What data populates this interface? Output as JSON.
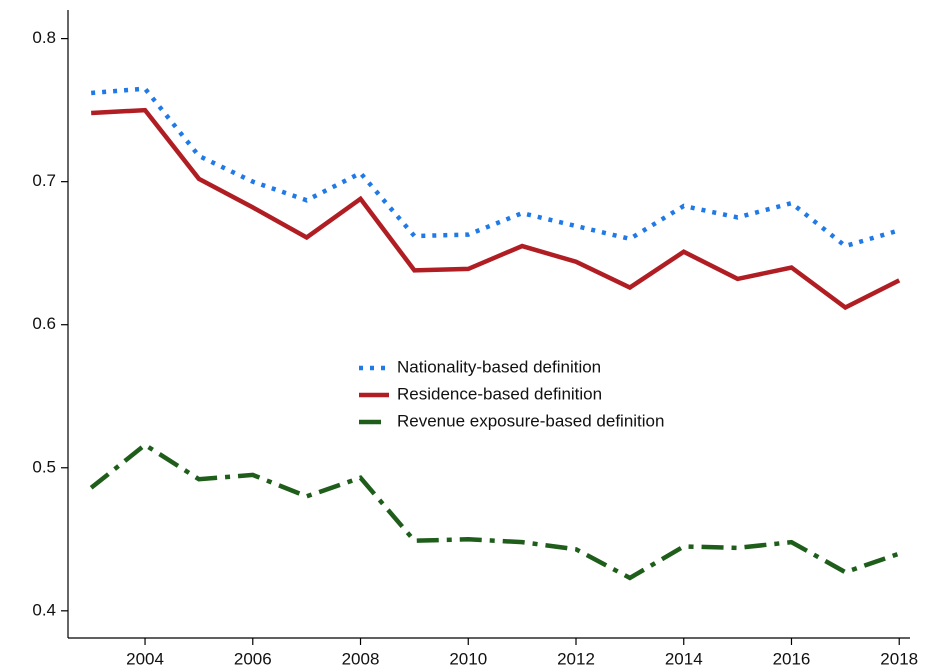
{
  "chart_data": {
    "type": "line",
    "x": [
      2003,
      2004,
      2005,
      2006,
      2007,
      2008,
      2009,
      2010,
      2011,
      2012,
      2013,
      2014,
      2015,
      2016,
      2017,
      2018
    ],
    "series": [
      {
        "name": "Nationality-based definition",
        "color": "#1f7ae8",
        "style": "dotted",
        "values": [
          0.762,
          0.765,
          0.718,
          0.7,
          0.687,
          0.706,
          0.662,
          0.663,
          0.678,
          0.669,
          0.66,
          0.683,
          0.675,
          0.685,
          0.655,
          0.666
        ]
      },
      {
        "name": "Residence-based definition",
        "color": "#b01e23",
        "style": "solid",
        "values": [
          0.748,
          0.75,
          0.702,
          0.682,
          0.661,
          0.688,
          0.638,
          0.639,
          0.655,
          0.644,
          0.626,
          0.651,
          0.632,
          0.64,
          0.612,
          0.631
        ]
      },
      {
        "name": "Revenue exposure-based definition",
        "color": "#1e5e1a",
        "style": "dashdot",
        "values": [
          0.486,
          0.516,
          0.492,
          0.495,
          0.48,
          0.493,
          0.449,
          0.45,
          0.448,
          0.443,
          0.423,
          0.445,
          0.444,
          0.448,
          0.427,
          0.44
        ]
      }
    ],
    "xlim": [
      2002.57,
      2018.2
    ],
    "xticks": [
      2004,
      2006,
      2008,
      2010,
      2012,
      2014,
      2016,
      2018
    ],
    "ylim": [
      0.381,
      0.82
    ],
    "yticks": [
      0.4,
      0.5,
      0.6,
      0.7,
      0.8
    ],
    "legend": "center"
  }
}
